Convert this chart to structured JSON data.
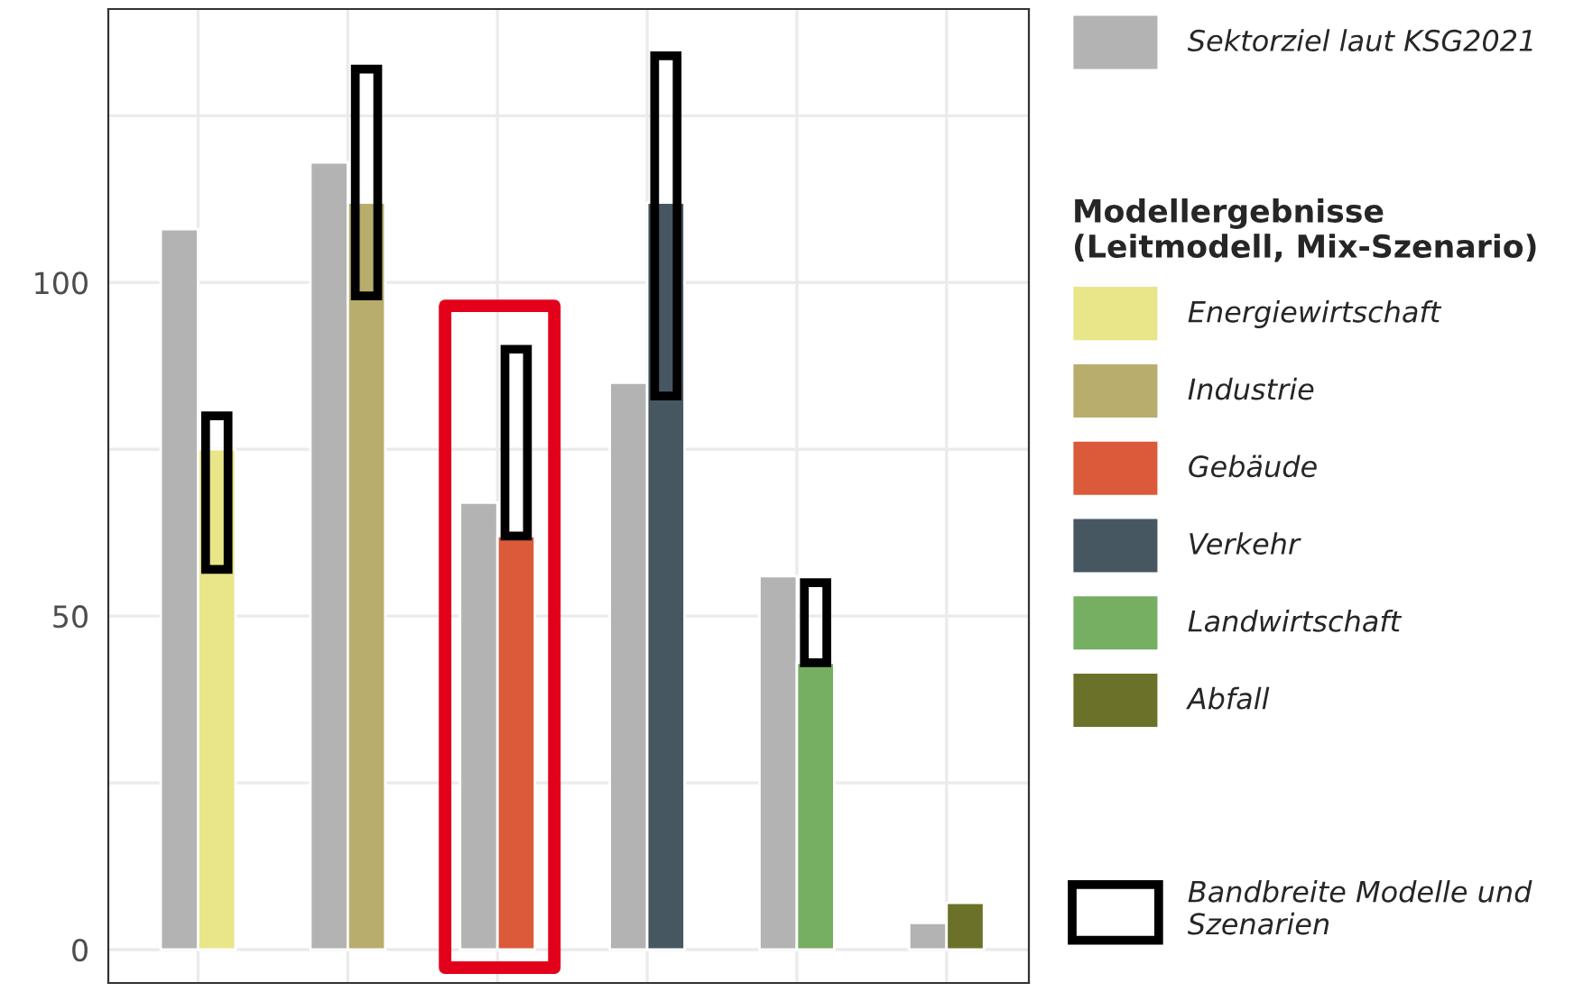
{
  "chart_data": {
    "type": "bar",
    "categories": [
      null,
      null,
      null,
      null,
      null,
      null
    ],
    "legend_title": "Modellergebnisse\n(Leitmodell, Mix-Szenario)",
    "series": [
      {
        "name": "Sektorziel laut KSG2021",
        "color": "#b3b3b3",
        "values": [
          108,
          118,
          67,
          85,
          56,
          4
        ]
      },
      {
        "name": "Energiewirtschaft",
        "color": "#e8e689",
        "values": [
          75,
          null,
          null,
          null,
          null,
          null
        ]
      },
      {
        "name": "Industrie",
        "color": "#b8ad6d",
        "values": [
          null,
          112,
          null,
          null,
          null,
          null
        ]
      },
      {
        "name": "Gebäude",
        "color": "#db5a3a",
        "values": [
          null,
          null,
          62,
          null,
          null,
          null
        ]
      },
      {
        "name": "Verkehr",
        "color": "#475762",
        "values": [
          null,
          null,
          null,
          112,
          null,
          null
        ]
      },
      {
        "name": "Landwirtschaft",
        "color": "#76ae62",
        "values": [
          null,
          null,
          null,
          null,
          43,
          null
        ]
      },
      {
        "name": "Abfall",
        "color": "#6b7128",
        "values": [
          null,
          null,
          null,
          null,
          null,
          7
        ]
      },
      {
        "name": "Bandbreite Modelle und Szenarien",
        "color": "#000000",
        "base": [
          57,
          98,
          62,
          83,
          43,
          null
        ],
        "values": [
          23,
          34,
          28,
          51,
          12,
          null
        ]
      }
    ],
    "ylim": [
      -5,
      141
    ],
    "yticks": [
      0,
      {
        "value": 25,
        "label": null
      },
      50,
      {
        "value": 75,
        "label": null
      },
      100,
      {
        "value": 125,
        "label": null
      }
    ],
    "grid": true,
    "legend": "right"
  }
}
